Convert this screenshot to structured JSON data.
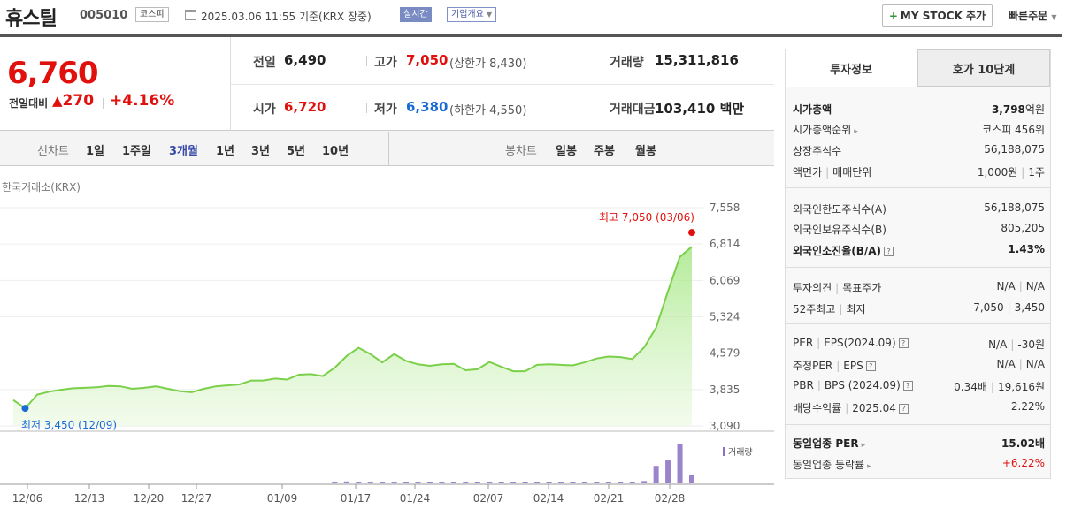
{
  "header": {
    "name": "휴스틸",
    "code": "005010",
    "market_badge": "코스피",
    "datetime": "2025.03.06 11:55",
    "basis": "기준(KRX 장중)",
    "realtime": "실시간",
    "company_info": "기업개요",
    "my_stock": "MY STOCK 추가",
    "quick_order": "빠른주문"
  },
  "price": {
    "current": "6,760",
    "change_label": "전일대비",
    "change": "270",
    "change_pct": "+4.16%",
    "prev_label": "전일",
    "prev": "6,490",
    "high_label": "고가",
    "high": "7,050",
    "upper_label": "상한가",
    "upper": "8,430",
    "volume_label": "거래량",
    "volume": "15,311,816",
    "open_label": "시가",
    "open": "6,720",
    "low_label": "저가",
    "low": "6,380",
    "lower_label": "하한가",
    "lower": "4,550",
    "amount_label": "거래대금",
    "amount": "103,410",
    "amount_unit": "백만"
  },
  "tabs": {
    "line_label": "선차트",
    "line": [
      "1일",
      "1주일",
      "3개월",
      "1년",
      "3년",
      "5년",
      "10년"
    ],
    "line_selected": 2,
    "candle_label": "봉차트",
    "candle": [
      "일봉",
      "주봉",
      "월봉"
    ]
  },
  "chart_data": {
    "type": "line",
    "source": "한국거래소(KRX)",
    "y_ticks": [
      "7,558",
      "6,814",
      "6,069",
      "5,324",
      "4,579",
      "3,835",
      "3,090"
    ],
    "ylim": [
      3090,
      7558
    ],
    "x_ticks": [
      "12/06",
      "12/13",
      "12/20",
      "12/27",
      "01/09",
      "01/17",
      "01/24",
      "02/07",
      "02/14",
      "02/21",
      "02/28"
    ],
    "max_label": "최고 7,050 (03/06)",
    "min_label": "최저 3,450 (12/09)",
    "volume_label": "거래량",
    "prices": [
      3620,
      3450,
      3730,
      3790,
      3830,
      3860,
      3870,
      3880,
      3910,
      3900,
      3850,
      3870,
      3900,
      3850,
      3800,
      3780,
      3850,
      3900,
      3920,
      3940,
      4020,
      4020,
      4060,
      4040,
      4140,
      4150,
      4110,
      4280,
      4520,
      4690,
      4560,
      4390,
      4560,
      4420,
      4350,
      4320,
      4350,
      4360,
      4230,
      4250,
      4400,
      4300,
      4210,
      4210,
      4340,
      4350,
      4340,
      4330,
      4390,
      4470,
      4510,
      4500,
      4460,
      4700,
      5100,
      5850,
      6550,
      6760
    ],
    "volumes": [
      0,
      0,
      0,
      0,
      0,
      0,
      0,
      0,
      0,
      0,
      0,
      0,
      0,
      0,
      0,
      0,
      0,
      0,
      0,
      0,
      0,
      0,
      0,
      0,
      0,
      0,
      0,
      0.03,
      0.05,
      0.04,
      0.03,
      0.03,
      0.03,
      0.03,
      0.03,
      0.02,
      0.02,
      0.02,
      0.02,
      0.02,
      0.02,
      0.02,
      0.04,
      0.03,
      0.03,
      0.02,
      0.02,
      0.02,
      0.02,
      0.03,
      0.03,
      0.02,
      0.03,
      0.06,
      0.45,
      0.59,
      1.0,
      0.22
    ]
  },
  "info": {
    "tab1": "투자정보",
    "tab2": "호가 10단계",
    "market_cap_label": "시가총액",
    "market_cap": "3,798",
    "market_cap_unit": "억원",
    "rank_label": "시가총액순위",
    "rank": "코스피 456위",
    "shares_label": "상장주식수",
    "shares": "56,188,075",
    "par_label": "액면가",
    "unit_label": "매매단위",
    "par": "1,000원",
    "unit": "1주",
    "foreign_limit_label": "외국인한도주식수(A)",
    "foreign_limit": "56,188,075",
    "foreign_hold_label": "외국인보유주식수(B)",
    "foreign_hold": "805,205",
    "foreign_rate_label": "외국인소진율(B/A)",
    "foreign_rate": "1.43%",
    "opinion_label": "투자의견",
    "target_label": "목표주가",
    "opinion": "N/A",
    "target": "N/A",
    "w52_high_label": "52주최고",
    "w52_low_label": "최저",
    "w52_high": "7,050",
    "w52_low": "3,450",
    "per_label": "PER",
    "eps_label": "EPS(2024.09)",
    "per": "N/A",
    "eps": "-30원",
    "est_per_label": "추정PER",
    "est_eps_label": "EPS",
    "est_per": "N/A",
    "est_eps": "N/A",
    "pbr_label": "PBR",
    "bps_label": "BPS (2024.09)",
    "pbr": "0.34배",
    "bps": "19,616원",
    "div_label": "배당수익률",
    "div_date": "2025.04",
    "div": "2.22%",
    "ind_per_label": "동일업종 PER",
    "ind_per": "15.02배",
    "ind_rate_label": "동일업종 등락률",
    "ind_rate": "+6.22%"
  }
}
